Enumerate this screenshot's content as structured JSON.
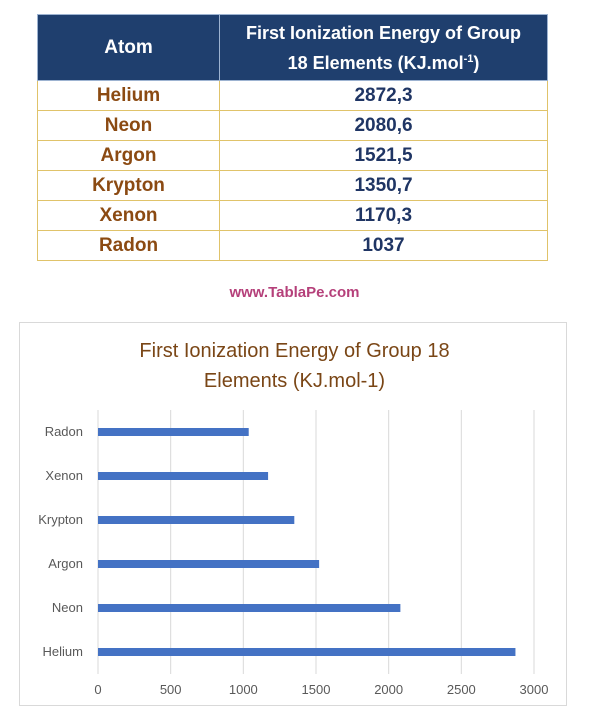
{
  "table": {
    "header_atom": "Atom",
    "header_energy_line1": "First Ionization Energy of Group",
    "header_energy_line2": "18 Elements (KJ.mol",
    "header_energy_sup": "-1",
    "header_energy_close": ")",
    "rows": [
      {
        "atom": "Helium",
        "value": "2872,3"
      },
      {
        "atom": "Neon",
        "value": "2080,6"
      },
      {
        "atom": "Argon",
        "value": "1521,5"
      },
      {
        "atom": "Krypton",
        "value": "1350,7"
      },
      {
        "atom": "Xenon",
        "value": "1170,3"
      },
      {
        "atom": "Radon",
        "value": "1037"
      }
    ]
  },
  "website": "www.TablaPe.com",
  "chart_data": {
    "type": "bar",
    "orientation": "horizontal",
    "title_line1": "First Ionization Energy of Group 18",
    "title_line2": "Elements (KJ.mol-1)",
    "categories": [
      "Helium",
      "Neon",
      "Argon",
      "Krypton",
      "Xenon",
      "Radon"
    ],
    "values": [
      2872.3,
      2080.6,
      1521.5,
      1350.7,
      1170.3,
      1037
    ],
    "xlim": [
      0,
      3000
    ],
    "xticks": [
      0,
      500,
      1000,
      1500,
      2000,
      2500,
      3000
    ],
    "grid": true,
    "bar_color": "#4472c4"
  }
}
